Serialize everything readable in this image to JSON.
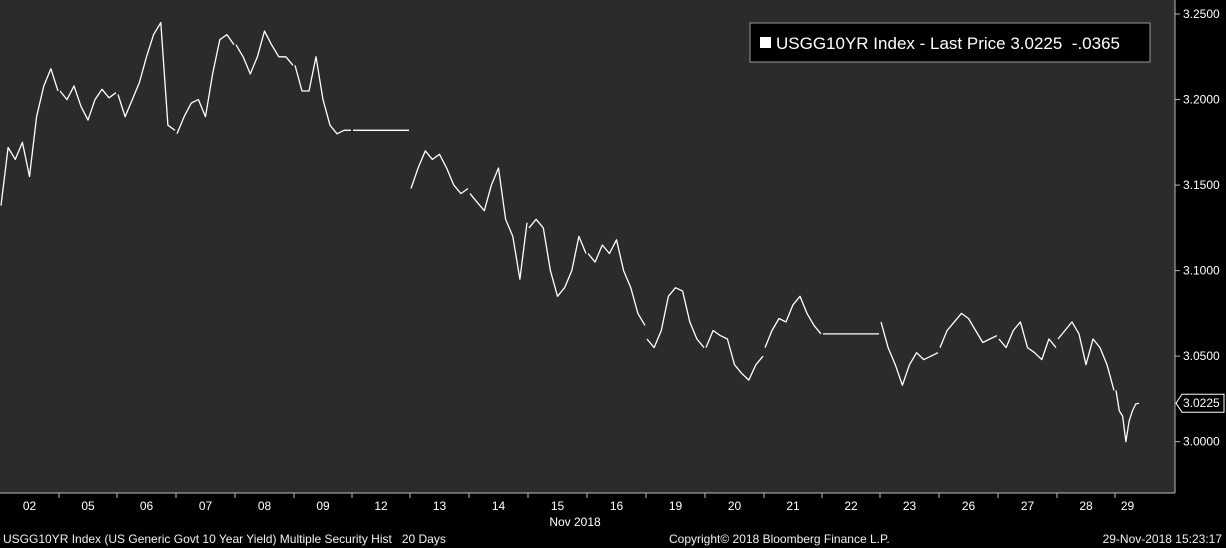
{
  "chart_data": {
    "type": "line",
    "series_label": "USGG10YR Index - Last Price",
    "last_price": "3.0225",
    "change": "-.0365",
    "last_value_tag": "3.0225",
    "ylim": [
      2.97,
      3.2582
    ],
    "y_ticks": [
      "3.2500",
      "3.2000",
      "3.1500",
      "3.1000",
      "3.0500",
      "3.0000"
    ],
    "y_tick_values": [
      3.25,
      3.2,
      3.15,
      3.1,
      3.05,
      3.0
    ],
    "x_ticks": [
      "02",
      "05",
      "06",
      "07",
      "08",
      "09",
      "12",
      "13",
      "14",
      "15",
      "16",
      "19",
      "20",
      "21",
      "22",
      "23",
      "26",
      "27",
      "28",
      "29"
    ],
    "x_month_label": "Nov 2018",
    "days": [
      {
        "day": "02",
        "values": [
          3.138,
          3.172,
          3.165,
          3.175,
          3.155,
          3.19,
          3.208,
          3.218,
          3.205
        ]
      },
      {
        "day": "05",
        "values": [
          3.205,
          3.2,
          3.208,
          3.196,
          3.188,
          3.2,
          3.206,
          3.201,
          3.204
        ]
      },
      {
        "day": "06",
        "values": [
          3.203,
          3.19,
          3.2,
          3.21,
          3.225,
          3.238,
          3.245,
          3.185,
          3.182
        ]
      },
      {
        "day": "07",
        "values": [
          3.18,
          3.19,
          3.198,
          3.2,
          3.19,
          3.215,
          3.235,
          3.238,
          3.232
        ]
      },
      {
        "day": "08",
        "values": [
          3.232,
          3.225,
          3.215,
          3.225,
          3.24,
          3.232,
          3.225,
          3.225,
          3.22
        ]
      },
      {
        "day": "09",
        "values": [
          3.22,
          3.205,
          3.205,
          3.225,
          3.2,
          3.185,
          3.18,
          3.182,
          3.182
        ]
      },
      {
        "day": "12",
        "values": [
          3.182,
          3.182,
          3.182
        ]
      },
      {
        "day": "13",
        "values": [
          3.148,
          3.16,
          3.17,
          3.165,
          3.168,
          3.16,
          3.15,
          3.145,
          3.148
        ]
      },
      {
        "day": "14",
        "values": [
          3.145,
          3.14,
          3.135,
          3.15,
          3.16,
          3.13,
          3.12,
          3.095,
          3.128
        ]
      },
      {
        "day": "15",
        "values": [
          3.125,
          3.13,
          3.125,
          3.1,
          3.085,
          3.09,
          3.1,
          3.12,
          3.11
        ]
      },
      {
        "day": "16",
        "values": [
          3.11,
          3.105,
          3.115,
          3.11,
          3.118,
          3.1,
          3.09,
          3.075,
          3.068
        ]
      },
      {
        "day": "19",
        "values": [
          3.06,
          3.055,
          3.065,
          3.085,
          3.09,
          3.088,
          3.07,
          3.06,
          3.055
        ]
      },
      {
        "day": "20",
        "values": [
          3.055,
          3.065,
          3.062,
          3.06,
          3.045,
          3.04,
          3.036,
          3.045,
          3.05
        ]
      },
      {
        "day": "21",
        "values": [
          3.055,
          3.065,
          3.072,
          3.07,
          3.08,
          3.085,
          3.075,
          3.068,
          3.063
        ]
      },
      {
        "day": "22",
        "values": [
          3.063,
          3.063,
          3.063
        ]
      },
      {
        "day": "23",
        "values": [
          3.07,
          3.055,
          3.045,
          3.033,
          3.045,
          3.052,
          3.048,
          3.05,
          3.052
        ]
      },
      {
        "day": "26",
        "values": [
          3.055,
          3.065,
          3.07,
          3.075,
          3.072,
          3.065,
          3.058,
          3.06,
          3.062
        ]
      },
      {
        "day": "27",
        "values": [
          3.06,
          3.055,
          3.065,
          3.07,
          3.055,
          3.052,
          3.048,
          3.06,
          3.055
        ]
      },
      {
        "day": "28",
        "values": [
          3.06,
          3.065,
          3.07,
          3.063,
          3.045,
          3.06,
          3.055,
          3.045,
          3.03
        ]
      },
      {
        "day": "29",
        "values": [
          3.03,
          3.018,
          3.015,
          3.0,
          3.012,
          3.018,
          3.022,
          3.0225
        ]
      }
    ]
  },
  "footer": {
    "left": "USGG10YR Index (US Generic Govt 10 Year Yield) Multiple Security Hist   20 Days",
    "center": "Copyright© 2018 Bloomberg Finance L.P.",
    "right": "29-Nov-2018 15:23:17"
  },
  "colors": {
    "plot_background": "#2b2b2b",
    "panel_background": "#000000",
    "line": "#ffffff",
    "text": "#ffffff"
  }
}
